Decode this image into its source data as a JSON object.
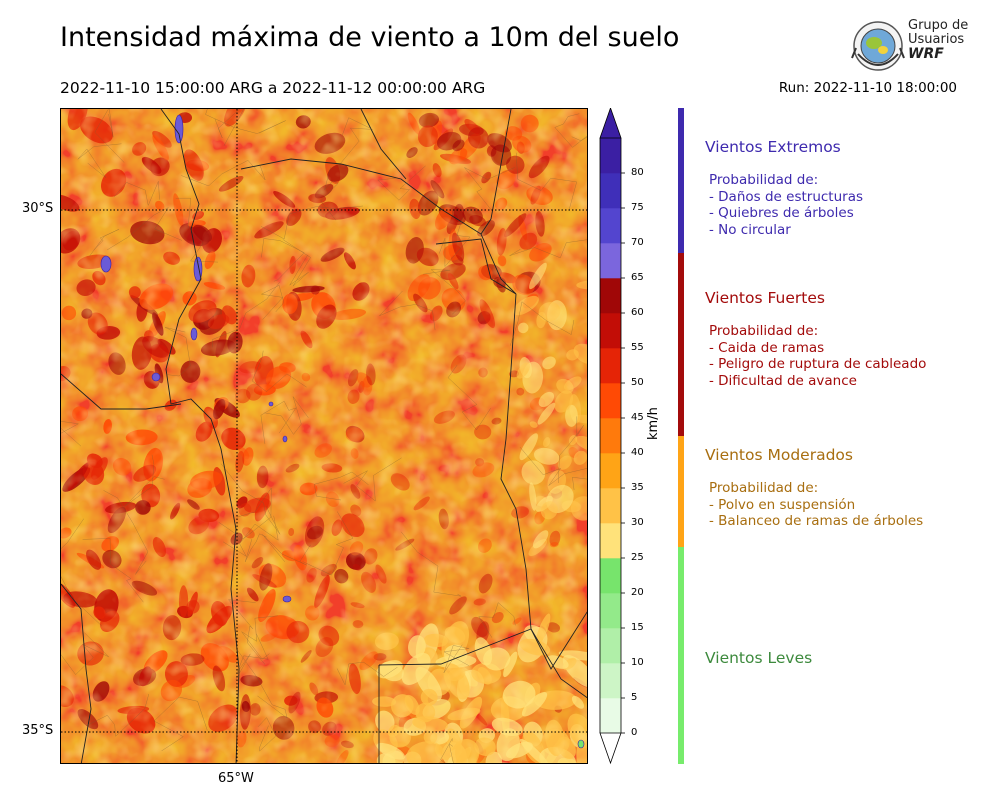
{
  "header": {
    "title": "Intensidad máxima de viento a 10m del suelo",
    "period": "2022-11-10 15:00:00 ARG  a  2022-11-12 00:00:00 ARG",
    "run": "Run: 2022-11-10 18:00:00"
  },
  "logo": {
    "line1": "Grupo de",
    "line2": "Usuarios",
    "line3": "WRF"
  },
  "map": {
    "lat_labels": [
      "30°S",
      "35°S"
    ],
    "lon_labels": [
      "65°W"
    ]
  },
  "colorbar": {
    "unit": "km/h",
    "ticks": [
      "0",
      "5",
      "10",
      "15",
      "20",
      "25",
      "30",
      "35",
      "40",
      "45",
      "50",
      "55",
      "60",
      "65",
      "70",
      "75",
      "80"
    ],
    "colors": [
      "#e8fbe6",
      "#cdf5c6",
      "#b0efa8",
      "#93ea8a",
      "#77e46c",
      "#ffe27a",
      "#ffc247",
      "#ffa416",
      "#ff7a0c",
      "#ff4a05",
      "#e52406",
      "#c20d06",
      "#a00707",
      "#7b66dd",
      "#5345cf",
      "#3f2fb9",
      "#3b1fa3"
    ]
  },
  "legend": [
    {
      "title": "Vientos Extremos",
      "color": "#3e2aae",
      "desc_header": "Probabilidad de:",
      "items": [
        "- Daños de estructuras",
        "- Quiebres de árboles",
        "- No circular"
      ]
    },
    {
      "title": "Vientos Fuertes",
      "color": "#a30b0b",
      "desc_header": "Probabilidad de:",
      "items": [
        "- Caida de ramas",
        "- Peligro de ruptura de cableado",
        "- Dificultad de avance"
      ]
    },
    {
      "title": "Vientos Moderados",
      "color": "#a86e10",
      "bar_color": "#ffa416",
      "desc_header": "Probabilidad de:",
      "items": [
        "- Polvo en suspensión",
        "- Balanceo de ramas de árboles"
      ]
    },
    {
      "title": "Vientos Leves",
      "color": "#3d8a3d",
      "bar_color": "#77ec6c",
      "desc_header": "",
      "items": []
    }
  ]
}
